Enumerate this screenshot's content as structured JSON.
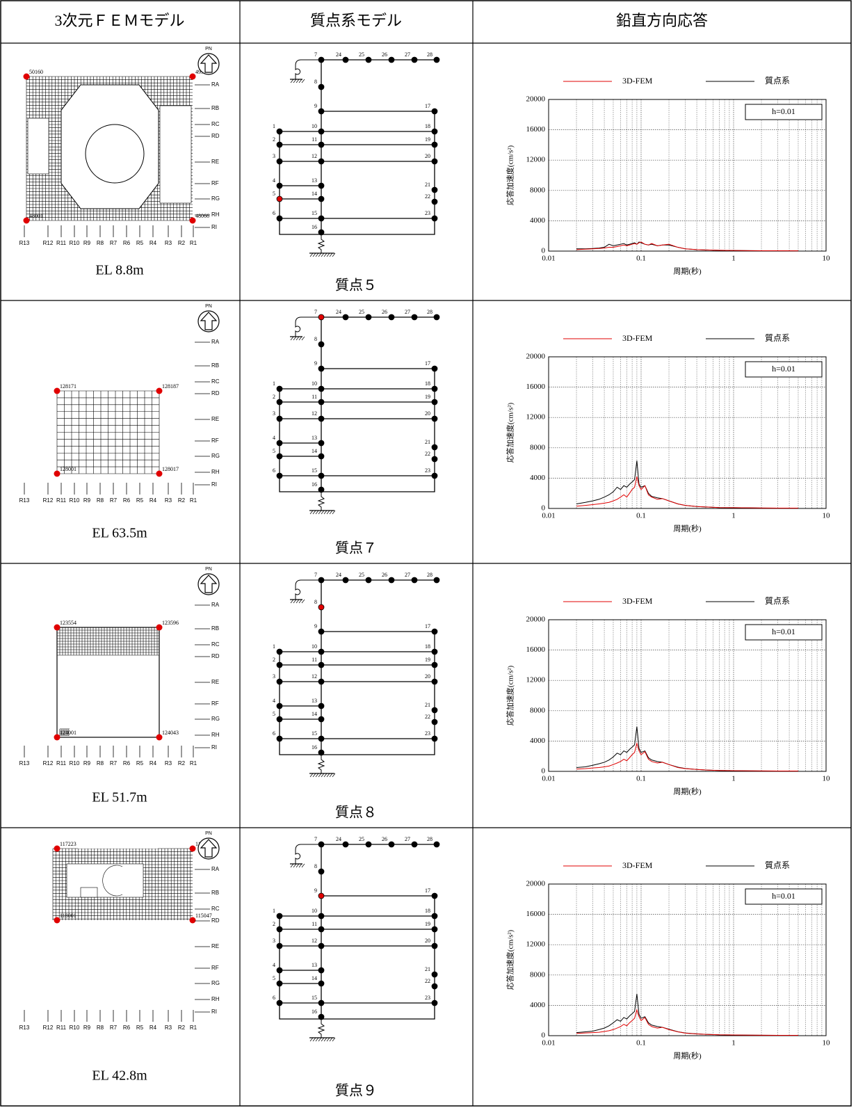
{
  "header": [
    "3次元ＦＥＭモデル",
    "質点系モデル",
    "鉛直方向応答"
  ],
  "fem_plan": {
    "north_label": "PN",
    "row_axes": [
      "RA",
      "RB",
      "RC",
      "RD",
      "RE",
      "RF",
      "RG",
      "RH",
      "RI"
    ],
    "col_axes": [
      "R13",
      "R12",
      "R11",
      "R10",
      "R9",
      "R8",
      "R7",
      "R6",
      "R5",
      "R4",
      "R3",
      "R2",
      "R1"
    ]
  },
  "mass_model": {
    "node_labels": [
      "1",
      "2",
      "3",
      "4",
      "5",
      "6",
      "7",
      "8",
      "9",
      "10",
      "11",
      "12",
      "13",
      "14",
      "15",
      "16",
      "17",
      "18",
      "19",
      "20",
      "21",
      "22",
      "23",
      "24",
      "25",
      "26",
      "27",
      "28"
    ]
  },
  "rows": [
    {
      "elevation": "EL 8.8m",
      "corner_nodes": [
        "50160",
        "49939",
        "48001",
        "48066"
      ],
      "mass_label": "質点５",
      "highlight_node": "5"
    },
    {
      "elevation": "EL 63.5m",
      "corner_nodes": [
        "128171",
        "128187",
        "128001",
        "128017"
      ],
      "mass_label": "質点７",
      "highlight_node": "7"
    },
    {
      "elevation": "EL 51.7m",
      "corner_nodes": [
        "123554",
        "123596",
        "124001",
        "124043"
      ],
      "mass_label": "質点８",
      "highlight_node": "8"
    },
    {
      "elevation": "EL 42.8m",
      "corner_nodes": [
        "117223",
        "117276",
        "118001",
        "115047"
      ],
      "mass_label": "質点９",
      "highlight_node": "9"
    }
  ],
  "chart_data": [
    {
      "type": "line",
      "ylabel": "応答加速度(cm/s²)",
      "xlabel": "周期(秒)",
      "annotation": "h=0.01",
      "legend": "top",
      "xscale": "log",
      "grid": true,
      "minor_grid": true,
      "xlim": [
        0.01,
        10
      ],
      "xticks": [
        0.01,
        0.1,
        1,
        10
      ],
      "ylim": [
        0,
        20000
      ],
      "yticks": [
        0,
        4000,
        8000,
        12000,
        16000,
        20000
      ],
      "x": [
        0.02,
        0.025,
        0.03,
        0.035,
        0.04,
        0.045,
        0.05,
        0.055,
        0.06,
        0.065,
        0.07,
        0.075,
        0.08,
        0.085,
        0.09,
        0.095,
        0.1,
        0.11,
        0.12,
        0.13,
        0.15,
        0.17,
        0.2,
        0.25,
        0.3,
        0.4,
        0.5,
        0.7,
        1,
        1.5,
        2,
        3,
        5
      ],
      "series": [
        {
          "name": "3D-FEM",
          "color": "#e00000",
          "values": [
            200,
            250,
            300,
            350,
            400,
            500,
            500,
            600,
            700,
            800,
            700,
            800,
            900,
            1000,
            900,
            1100,
            1200,
            900,
            800,
            1000,
            700,
            800,
            900,
            500,
            300,
            200,
            150,
            100,
            80,
            60,
            50,
            40,
            30
          ]
        },
        {
          "name": "質点系",
          "color": "#000000",
          "values": [
            300,
            300,
            350,
            400,
            500,
            900,
            700,
            800,
            900,
            1000,
            800,
            900,
            1000,
            1100,
            900,
            1200,
            1100,
            900,
            800,
            900,
            700,
            800,
            800,
            500,
            300,
            200,
            150,
            100,
            80,
            60,
            50,
            40,
            30
          ]
        }
      ]
    },
    {
      "type": "line",
      "ylabel": "応答加速度(cm/s²)",
      "xlabel": "周期(秒)",
      "annotation": "h=0.01",
      "legend": "top",
      "xscale": "log",
      "grid": true,
      "minor_grid": true,
      "xlim": [
        0.01,
        10
      ],
      "xticks": [
        0.01,
        0.1,
        1,
        10
      ],
      "ylim": [
        0,
        20000
      ],
      "yticks": [
        0,
        4000,
        8000,
        12000,
        16000,
        20000
      ],
      "x": [
        0.02,
        0.025,
        0.03,
        0.035,
        0.04,
        0.045,
        0.05,
        0.055,
        0.06,
        0.065,
        0.07,
        0.075,
        0.08,
        0.085,
        0.09,
        0.095,
        0.1,
        0.11,
        0.12,
        0.13,
        0.15,
        0.17,
        0.2,
        0.25,
        0.3,
        0.4,
        0.5,
        0.7,
        1,
        1.5,
        2,
        3,
        5
      ],
      "series": [
        {
          "name": "3D-FEM",
          "color": "#e00000",
          "values": [
            300,
            400,
            500,
            600,
            700,
            800,
            1000,
            1200,
            1500,
            1800,
            1500,
            2000,
            2500,
            2800,
            4200,
            3000,
            2500,
            3000,
            1800,
            1500,
            1200,
            1300,
            1000,
            600,
            400,
            250,
            200,
            120,
            100,
            80,
            60,
            50,
            40
          ]
        },
        {
          "name": "質点系",
          "color": "#000000",
          "values": [
            600,
            800,
            1000,
            1200,
            1500,
            1800,
            2200,
            2800,
            2500,
            3000,
            2800,
            3200,
            3500,
            3800,
            6300,
            3200,
            2800,
            3000,
            2000,
            1600,
            1400,
            1300,
            1000,
            600,
            400,
            250,
            200,
            120,
            100,
            80,
            60,
            50,
            40
          ]
        }
      ]
    },
    {
      "type": "line",
      "ylabel": "応答加速度(cm/s²)",
      "xlabel": "周期(秒)",
      "annotation": "h=0.01",
      "legend": "top",
      "xscale": "log",
      "grid": true,
      "minor_grid": true,
      "xlim": [
        0.01,
        10
      ],
      "xticks": [
        0.01,
        0.1,
        1,
        10
      ],
      "ylim": [
        0,
        20000
      ],
      "yticks": [
        0,
        4000,
        8000,
        12000,
        16000,
        20000
      ],
      "x": [
        0.02,
        0.025,
        0.03,
        0.035,
        0.04,
        0.045,
        0.05,
        0.055,
        0.06,
        0.065,
        0.07,
        0.075,
        0.08,
        0.085,
        0.09,
        0.095,
        0.1,
        0.11,
        0.12,
        0.13,
        0.15,
        0.17,
        0.2,
        0.25,
        0.3,
        0.4,
        0.5,
        0.7,
        1,
        1.5,
        2,
        3,
        5
      ],
      "series": [
        {
          "name": "3D-FEM",
          "color": "#e00000",
          "values": [
            300,
            350,
            450,
            500,
            600,
            700,
            900,
            1100,
            1300,
            1600,
            1400,
            1800,
            2200,
            2500,
            3700,
            2700,
            2200,
            2600,
            1600,
            1300,
            1100,
            1200,
            900,
            500,
            350,
            250,
            180,
            120,
            90,
            70,
            60,
            50,
            40
          ]
        },
        {
          "name": "質点系",
          "color": "#000000",
          "values": [
            500,
            600,
            800,
            1000,
            1200,
            1500,
            1900,
            2400,
            2200,
            2700,
            2500,
            2900,
            3200,
            3500,
            5900,
            3000,
            2500,
            2700,
            1800,
            1500,
            1300,
            1200,
            900,
            550,
            380,
            250,
            180,
            120,
            90,
            70,
            60,
            50,
            40
          ]
        }
      ]
    },
    {
      "type": "line",
      "ylabel": "応答加速度(cm/s²)",
      "xlabel": "周期(秒)",
      "annotation": "h=0.01",
      "legend": "top",
      "xscale": "log",
      "grid": true,
      "minor_grid": true,
      "xlim": [
        0.01,
        10
      ],
      "xticks": [
        0.01,
        0.1,
        1,
        10
      ],
      "ylim": [
        0,
        20000
      ],
      "yticks": [
        0,
        4000,
        8000,
        12000,
        16000,
        20000
      ],
      "x": [
        0.02,
        0.025,
        0.03,
        0.035,
        0.04,
        0.045,
        0.05,
        0.055,
        0.06,
        0.065,
        0.07,
        0.075,
        0.08,
        0.085,
        0.09,
        0.095,
        0.1,
        0.11,
        0.12,
        0.13,
        0.15,
        0.17,
        0.2,
        0.25,
        0.3,
        0.4,
        0.5,
        0.7,
        1,
        1.5,
        2,
        3,
        5
      ],
      "series": [
        {
          "name": "3D-FEM",
          "color": "#e00000",
          "values": [
            300,
            350,
            400,
            450,
            550,
            650,
            800,
            1000,
            1200,
            1500,
            1300,
            1700,
            2000,
            2300,
            3400,
            2500,
            2000,
            2400,
            1500,
            1200,
            1000,
            1100,
            800,
            500,
            330,
            230,
            170,
            110,
            90,
            70,
            60,
            50,
            40
          ]
        },
        {
          "name": "質点系",
          "color": "#000000",
          "values": [
            400,
            500,
            600,
            800,
            1000,
            1300,
            1700,
            2100,
            1900,
            2400,
            2200,
            2600,
            2900,
            3200,
            5500,
            2800,
            2300,
            2500,
            1700,
            1400,
            1200,
            1100,
            850,
            520,
            360,
            240,
            170,
            110,
            90,
            70,
            60,
            50,
            40
          ]
        }
      ]
    }
  ]
}
